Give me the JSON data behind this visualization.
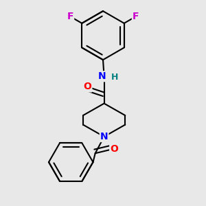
{
  "background_color": "#e8e8e8",
  "bond_color": "#000000",
  "bond_width": 1.5,
  "atom_colors": {
    "O": "#ff0000",
    "N": "#0000ff",
    "F": "#cc00cc",
    "H": "#008080",
    "C": "#000000"
  },
  "font_size_atoms": 10,
  "font_size_H": 9
}
